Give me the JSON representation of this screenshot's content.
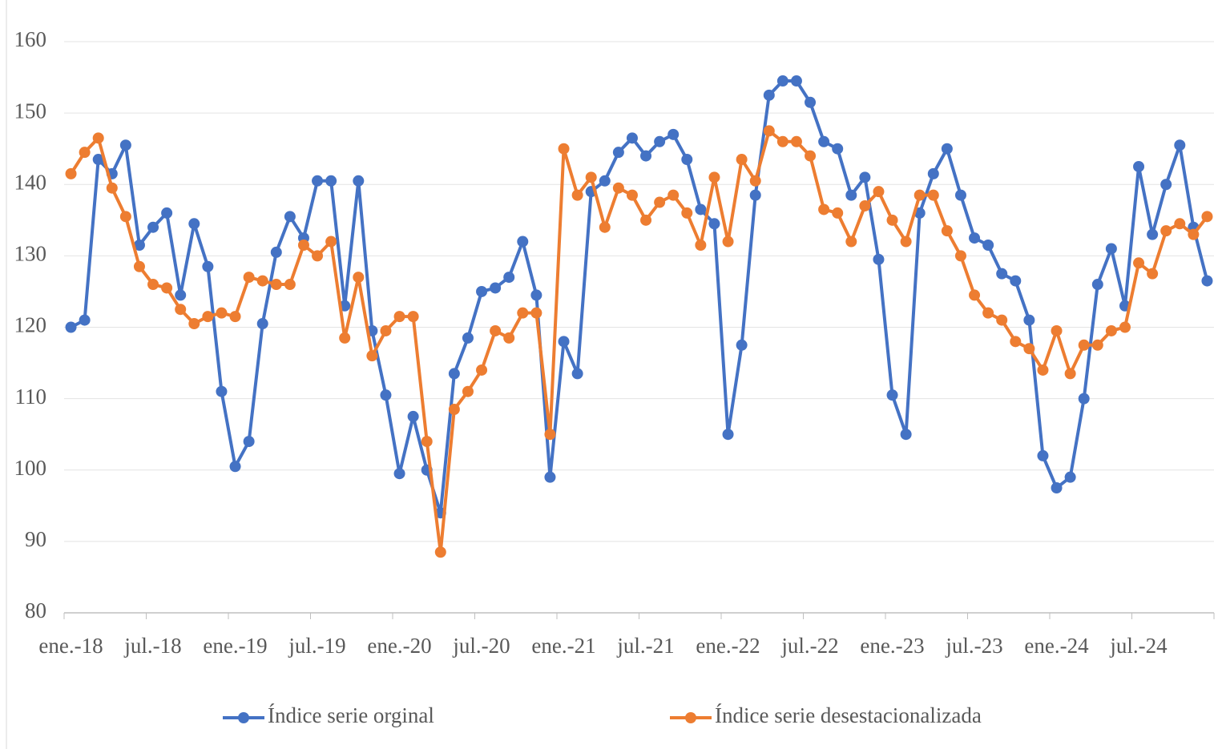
{
  "chart_data": {
    "type": "line",
    "categories": [
      "ene.-18",
      null,
      null,
      null,
      null,
      null,
      "jul.-18",
      null,
      null,
      null,
      null,
      null,
      "ene.-19",
      null,
      null,
      null,
      null,
      null,
      "jul.-19",
      null,
      null,
      null,
      null,
      null,
      "ene.-20",
      null,
      null,
      null,
      null,
      null,
      "jul.-20",
      null,
      null,
      null,
      null,
      null,
      "ene.-21",
      null,
      null,
      null,
      null,
      null,
      "jul.-21",
      null,
      null,
      null,
      null,
      null,
      "ene.-22",
      null,
      null,
      null,
      null,
      null,
      "jul.-22",
      null,
      null,
      null,
      null,
      null,
      "ene.-23",
      null,
      null,
      null,
      null,
      null,
      "jul.-23",
      null,
      null,
      null,
      null,
      null,
      "ene.-24",
      null,
      null,
      null,
      null,
      null,
      "jul.-24",
      null,
      null,
      null,
      null,
      null
    ],
    "series": [
      {
        "name": "Índice serie orginal",
        "color": "#4472c4",
        "values": [
          120,
          121,
          143.5,
          141.5,
          145.5,
          131.5,
          134,
          136,
          124.5,
          134.5,
          128.5,
          111,
          100.5,
          104,
          120.5,
          130.5,
          135.5,
          132.5,
          140.5,
          140.5,
          123,
          140.5,
          119.5,
          110.5,
          99.5,
          107.5,
          100,
          94,
          113.5,
          118.5,
          125,
          125.5,
          127,
          132,
          124.5,
          99,
          118,
          113.5,
          139,
          140.5,
          144.5,
          146.5,
          144,
          146,
          147,
          143.5,
          136.5,
          134.5,
          105,
          117.5,
          138.5,
          152.5,
          154.5,
          154.5,
          151.5,
          146,
          145,
          138.5,
          141,
          129.5,
          110.5,
          105,
          136,
          141.5,
          145,
          138.5,
          132.5,
          131.5,
          127.5,
          126.5,
          121,
          102,
          97.5,
          99,
          110,
          126,
          131,
          123,
          142.5,
          133,
          140,
          145.5,
          134,
          126.5
        ]
      },
      {
        "name": "Índice serie desestacionalizada",
        "color": "#ed7d31",
        "values": [
          141.5,
          144.5,
          146.5,
          139.5,
          135.5,
          128.5,
          126,
          125.5,
          122.5,
          120.5,
          121.5,
          122,
          121.5,
          127,
          126.5,
          126,
          126,
          131.5,
          130,
          132,
          118.5,
          127,
          116,
          119.5,
          121.5,
          121.5,
          104,
          88.5,
          108.5,
          111,
          114,
          119.5,
          118.5,
          122,
          122,
          105,
          145,
          138.5,
          141,
          134,
          139.5,
          138.5,
          135,
          137.5,
          138.5,
          136,
          131.5,
          141,
          132,
          143.5,
          140.5,
          147.5,
          146,
          146,
          144,
          136.5,
          136,
          132,
          137,
          139,
          135,
          132,
          138.5,
          138.5,
          133.5,
          130,
          124.5,
          122,
          121,
          118,
          117,
          114,
          119.5,
          113.5,
          117.5,
          117.5,
          119.5,
          120,
          129,
          127.5,
          133.5,
          134.5,
          133,
          135.5
        ]
      }
    ],
    "ylim": [
      80,
      160
    ],
    "yticks": [
      80,
      90,
      100,
      110,
      120,
      130,
      140,
      150,
      160
    ],
    "grid": true,
    "legend": "bottom"
  }
}
